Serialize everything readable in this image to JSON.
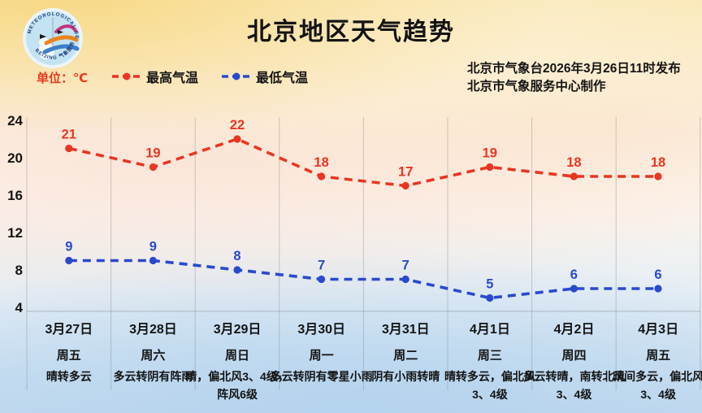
{
  "header": {
    "title": "北京地区天气趋势",
    "unit_label": "单位：℃",
    "publisher_line1": "北京市气象台2026年3月26日11时发布",
    "publisher_line2": "北京市气象服务中心制作",
    "logo_ring_top": "METEOROLOGICAL SERVICE",
    "logo_ring_bottom": "BEIJING 气象服务"
  },
  "legend": [
    {
      "label": "最高气温",
      "color": "#ea3522"
    },
    {
      "label": "最低气温",
      "color": "#2a49cf"
    }
  ],
  "chart_data": {
    "type": "line",
    "title": "北京地区天气趋势",
    "categories": [
      "3月27日",
      "3月28日",
      "3月29日",
      "3月30日",
      "3月31日",
      "4月1日",
      "4月2日",
      "4月3日"
    ],
    "weekdays": [
      "周五",
      "周六",
      "周日",
      "周一",
      "周二",
      "周三",
      "周四",
      "周五"
    ],
    "series": [
      {
        "name": "最高气温",
        "color": "#ea3522",
        "style": "dashed",
        "marker": "circle",
        "values": [
          21,
          19,
          22,
          18,
          17,
          19,
          18,
          18
        ]
      },
      {
        "name": "最低气温",
        "color": "#2a49cf",
        "style": "dashed",
        "marker": "circle",
        "values": [
          9,
          9,
          8,
          7,
          7,
          5,
          6,
          6
        ]
      }
    ],
    "weather": [
      "晴转多云",
      "多云转阴有阵雨",
      "晴，偏北风3、4级，阵风6级",
      "多云转阴有零星小雨",
      "阴有小雨转晴",
      "晴转多云，偏北风3、4级",
      "多云转晴，南转北风3、4级",
      "晴间多云，偏北风3、4级"
    ],
    "ylabel": "℃",
    "yticks": [
      4,
      8,
      12,
      16,
      20,
      24
    ],
    "ylim": [
      4,
      24
    ],
    "grid": "vertical",
    "legend_position": "top-left"
  }
}
